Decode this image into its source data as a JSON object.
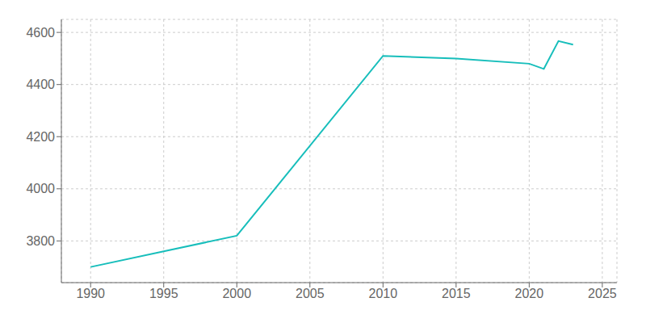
{
  "chart_data": {
    "type": "line",
    "x": [
      1990,
      1995,
      2000,
      2010,
      2015,
      2020,
      2021,
      2022,
      2023
    ],
    "values": [
      3700,
      3760,
      3820,
      4510,
      4500,
      4480,
      4460,
      4567,
      4553
    ],
    "color": "#17BEBB",
    "xlim": [
      1988,
      2026
    ],
    "ylim": [
      3640,
      4650
    ],
    "xticks": [
      1990,
      1995,
      2000,
      2005,
      2010,
      2015,
      2020,
      2025
    ],
    "yticks": [
      3800,
      4000,
      4200,
      4400,
      4600
    ],
    "grid": true
  }
}
